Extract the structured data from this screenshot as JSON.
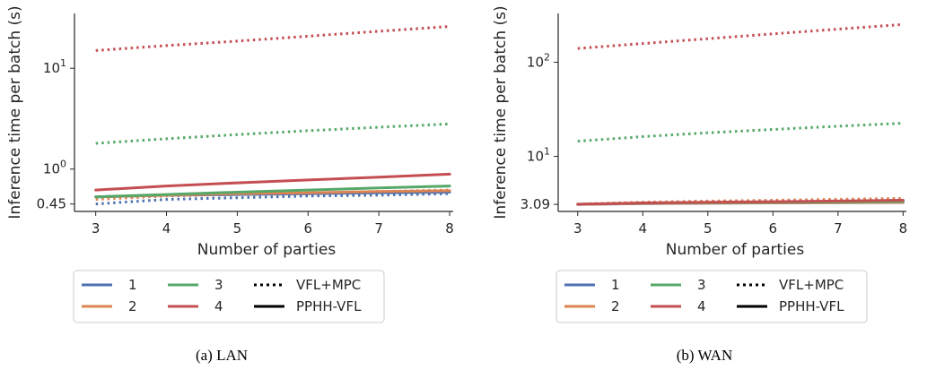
{
  "chart_data": [
    {
      "type": "line",
      "caption": "(a) LAN",
      "xlabel": "Number of parties",
      "ylabel": "Inference time per batch (s)",
      "yscale": "log",
      "ylim": [
        0.38,
        35
      ],
      "xlim": [
        2.7,
        8.05
      ],
      "x": [
        3,
        4,
        5,
        6,
        7,
        8
      ],
      "xticks": [
        "3",
        "4",
        "5",
        "6",
        "7",
        "8"
      ],
      "yticks": [
        {
          "value": 0.45,
          "label": "0.45"
        },
        {
          "value": 1,
          "label": "10⁰"
        },
        {
          "value": 10,
          "label": "10¹"
        }
      ],
      "series": [
        {
          "name": "1",
          "style": "dotted",
          "values": [
            0.45,
            0.5,
            0.52,
            0.54,
            0.55,
            0.57
          ]
        },
        {
          "name": "2",
          "style": "dotted",
          "values": [
            0.5,
            0.54,
            0.56,
            0.58,
            0.6,
            0.62
          ]
        },
        {
          "name": "3",
          "style": "dotted",
          "values": [
            1.8,
            2.0,
            2.2,
            2.4,
            2.6,
            2.8
          ]
        },
        {
          "name": "4",
          "style": "dotted",
          "values": [
            15,
            16.8,
            18.6,
            20.8,
            23.3,
            26
          ]
        },
        {
          "name": "1",
          "style": "solid",
          "values": [
            0.53,
            0.55,
            0.56,
            0.57,
            0.58,
            0.59
          ]
        },
        {
          "name": "2",
          "style": "solid",
          "values": [
            0.53,
            0.55,
            0.57,
            0.58,
            0.6,
            0.61
          ]
        },
        {
          "name": "3",
          "style": "solid",
          "values": [
            0.53,
            0.56,
            0.59,
            0.62,
            0.65,
            0.68
          ]
        },
        {
          "name": "4",
          "style": "solid",
          "values": [
            0.62,
            0.68,
            0.73,
            0.78,
            0.83,
            0.89
          ]
        }
      ]
    },
    {
      "type": "line",
      "caption": "(b) WAN",
      "xlabel": "Number of parties",
      "ylabel": "Inference time per batch (s)",
      "yscale": "log",
      "ylim": [
        2.6,
        330
      ],
      "xlim": [
        2.7,
        8.05
      ],
      "x": [
        3,
        4,
        5,
        6,
        7,
        8
      ],
      "xticks": [
        "3",
        "4",
        "5",
        "6",
        "7",
        "8"
      ],
      "yticks": [
        {
          "value": 3.09,
          "label": "3.09"
        },
        {
          "value": 10,
          "label": "10¹"
        },
        {
          "value": 100,
          "label": "10²"
        }
      ],
      "series": [
        {
          "name": "1",
          "style": "dotted",
          "values": [
            3.09,
            3.22,
            3.3,
            3.36,
            3.42,
            3.48
          ]
        },
        {
          "name": "2",
          "style": "dotted",
          "values": [
            3.12,
            3.26,
            3.35,
            3.42,
            3.5,
            3.58
          ]
        },
        {
          "name": "3",
          "style": "dotted",
          "values": [
            14.5,
            16.2,
            17.8,
            19.3,
            20.9,
            22.5
          ]
        },
        {
          "name": "4",
          "style": "dotted",
          "values": [
            140,
            158,
            178,
            200,
            225,
            252
          ]
        },
        {
          "name": "1",
          "style": "solid",
          "values": [
            3.09,
            3.15,
            3.18,
            3.2,
            3.22,
            3.24
          ]
        },
        {
          "name": "2",
          "style": "solid",
          "values": [
            3.09,
            3.16,
            3.19,
            3.21,
            3.23,
            3.25
          ]
        },
        {
          "name": "3",
          "style": "solid",
          "values": [
            3.1,
            3.18,
            3.22,
            3.25,
            3.28,
            3.32
          ]
        },
        {
          "name": "4",
          "style": "solid",
          "values": [
            3.1,
            3.2,
            3.25,
            3.3,
            3.35,
            3.42
          ]
        }
      ]
    }
  ],
  "legend": {
    "series": [
      {
        "label": "1",
        "color": "#4c72b0"
      },
      {
        "label": "2",
        "color": "#dd8452"
      },
      {
        "label": "3",
        "color": "#55a868"
      },
      {
        "label": "4",
        "color": "#c44e52"
      }
    ],
    "styles": [
      {
        "label": "VFL+MPC",
        "dash": "dotted"
      },
      {
        "label": "PPHH-VFL",
        "dash": "solid"
      }
    ]
  },
  "colors": {
    "1": "#4c72b0",
    "2": "#dd8452",
    "3": "#55a868",
    "4": "#c44e52"
  }
}
